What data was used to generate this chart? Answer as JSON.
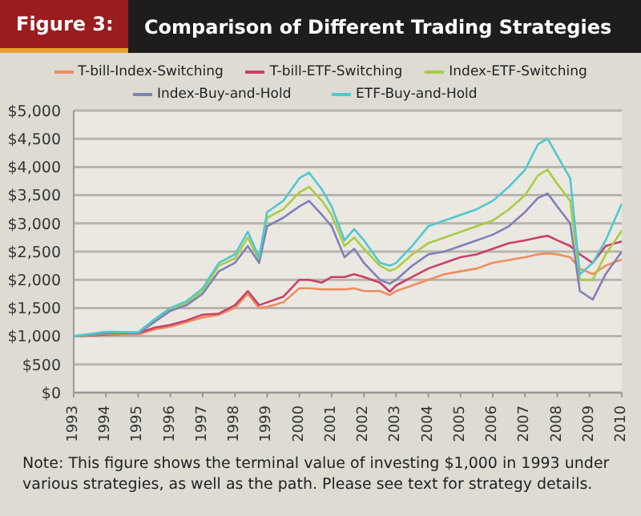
{
  "chart_data": {
    "type": "line",
    "title": "Comparison of Different Trading Strategies",
    "annotations": [
      "Figure 3:",
      "Note: This figure shows the terminal value of investing $1,000 in 1993 under various strategies, as well as the path. Please see text for strategy details."
    ],
    "x": [
      1993,
      1994,
      1995,
      1995.5,
      1996,
      1996.5,
      1997,
      1997.5,
      1998,
      1998.4,
      1998.75,
      1999,
      1999.5,
      2000,
      2000.3,
      2000.7,
      2001,
      2001.4,
      2001.7,
      2002,
      2002.5,
      2002.8,
      2003,
      2003.5,
      2004,
      2004.5,
      2005,
      2005.5,
      2006,
      2006.5,
      2007,
      2007.4,
      2007.7,
      2008,
      2008.4,
      2008.7,
      2009.1,
      2009.5,
      2010
    ],
    "series": [
      {
        "name": "T-bill-Index-Switching",
        "color": "#f08c60",
        "values": [
          1000,
          1020,
          1030,
          1120,
          1170,
          1250,
          1330,
          1380,
          1500,
          1750,
          1500,
          1520,
          1600,
          1850,
          1850,
          1830,
          1830,
          1830,
          1850,
          1800,
          1800,
          1730,
          1800,
          1900,
          2000,
          2100,
          2150,
          2200,
          2300,
          2350,
          2400,
          2450,
          2470,
          2450,
          2400,
          2200,
          2100,
          2250,
          2360
        ]
      },
      {
        "name": "T-bill-ETF-Switching",
        "color": "#c8406a",
        "values": [
          1000,
          1030,
          1050,
          1150,
          1200,
          1280,
          1380,
          1400,
          1550,
          1800,
          1550,
          1600,
          1700,
          2000,
          2000,
          1950,
          2050,
          2050,
          2100,
          2050,
          1950,
          1790,
          1900,
          2050,
          2200,
          2300,
          2400,
          2450,
          2550,
          2650,
          2700,
          2750,
          2780,
          2700,
          2600,
          2450,
          2300,
          2600,
          2680
        ]
      },
      {
        "name": "Index-ETF-Switching",
        "color": "#a8cc44",
        "values": [
          1000,
          1050,
          1045,
          1280,
          1470,
          1580,
          1800,
          2250,
          2380,
          2750,
          2350,
          3100,
          3250,
          3550,
          3650,
          3400,
          3150,
          2600,
          2750,
          2550,
          2250,
          2160,
          2200,
          2450,
          2650,
          2750,
          2850,
          2950,
          3050,
          3250,
          3500,
          3850,
          3950,
          3700,
          3400,
          2000,
          2000,
          2450,
          2870
        ]
      },
      {
        "name": "Index-Buy-and-Hold",
        "color": "#8080b8",
        "values": [
          1000,
          1060,
          1050,
          1250,
          1450,
          1550,
          1750,
          2150,
          2300,
          2600,
          2300,
          2950,
          3100,
          3300,
          3400,
          3150,
          2950,
          2400,
          2550,
          2300,
          2000,
          1930,
          2000,
          2250,
          2450,
          2500,
          2600,
          2700,
          2800,
          2950,
          3200,
          3450,
          3530,
          3300,
          3000,
          1800,
          1650,
          2100,
          2500
        ]
      },
      {
        "name": "ETF-Buy-and-Hold",
        "color": "#50c8d0",
        "values": [
          1000,
          1080,
          1070,
          1300,
          1500,
          1620,
          1850,
          2300,
          2450,
          2850,
          2400,
          3200,
          3400,
          3800,
          3900,
          3600,
          3300,
          2700,
          2900,
          2700,
          2300,
          2250,
          2300,
          2600,
          2950,
          3050,
          3150,
          3250,
          3400,
          3650,
          3950,
          4400,
          4500,
          4200,
          3800,
          2100,
          2300,
          2700,
          3350
        ]
      }
    ],
    "xlim": [
      1993,
      2010
    ],
    "xticks": [
      1993,
      1994,
      1995,
      1996,
      1997,
      1998,
      1999,
      2000,
      2001,
      2002,
      2003,
      2004,
      2005,
      2006,
      2007,
      2008,
      2009,
      2010
    ],
    "ylim": [
      0,
      5000
    ],
    "yticks": [
      {
        "value": 0,
        "label": "$0"
      },
      {
        "value": 500,
        "label": "$500"
      },
      {
        "value": 1000,
        "label": "$1,000"
      },
      {
        "value": 1500,
        "label": "$1,500"
      },
      {
        "value": 2000,
        "label": "$2,000"
      },
      {
        "value": 2500,
        "label": "$2,500"
      },
      {
        "value": 3000,
        "label": "$3,000"
      },
      {
        "value": 3500,
        "label": "$3,500"
      },
      {
        "value": 4000,
        "label": "$4,000"
      },
      {
        "value": 4500,
        "label": "$4,500"
      },
      {
        "value": 5000,
        "label": "$5,000"
      }
    ],
    "grid": "y",
    "legend": "top",
    "marker": "none",
    "line_style": "solid"
  }
}
